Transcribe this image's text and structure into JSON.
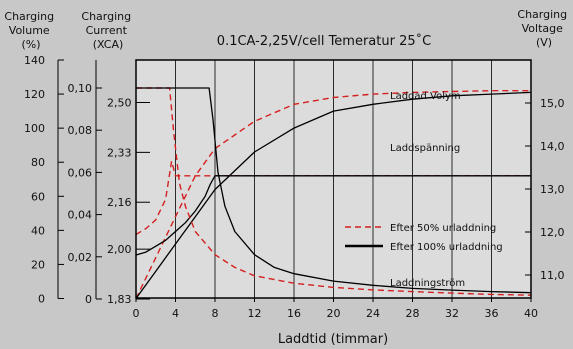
{
  "chart_data": {
    "type": "line",
    "title": "0.1CA-2,25V/cell   Temeratur 25˚C",
    "xlabel": "Laddtid (timmar)",
    "x_ticks": [
      0,
      4,
      8,
      12,
      16,
      20,
      24,
      28,
      32,
      36,
      40
    ],
    "xlim": [
      0,
      40
    ],
    "axes": {
      "volume": {
        "label_lines": [
          "Charging",
          "Volume",
          "(%)"
        ],
        "ticks": [
          "0",
          "20",
          "40",
          "60",
          "80",
          "100",
          "120",
          "140"
        ],
        "ylim": [
          0,
          140
        ]
      },
      "current": {
        "label_lines": [
          "Charging",
          "Current",
          "(XCA)"
        ],
        "ticks": [
          "0",
          "0,02",
          "0,04",
          "0,06",
          "0,08",
          "0,10"
        ],
        "ylim": [
          0,
          0.12
        ]
      },
      "cell_voltage": {
        "ticks": [
          "1,83",
          "2,00",
          "2,16",
          "2,33",
          "2,50"
        ]
      },
      "charging_voltage": {
        "label_lines": [
          "Charging",
          "Voltage",
          "(V)"
        ],
        "ticks": [
          "11,0",
          "12,0",
          "13,0",
          "14,0",
          "15,0"
        ]
      }
    },
    "annotations": [
      "Laddad Volym",
      "Laddspänning",
      "Laddningström"
    ],
    "legend": {
      "position": "right",
      "entries": [
        {
          "label": "Efter 50% urladdning",
          "style": "dashed",
          "color": "#d42020"
        },
        {
          "label": "Efter 100% urladdning",
          "style": "solid",
          "color": "#000000"
        }
      ]
    },
    "series": [
      {
        "group": "volume",
        "discharge": "50%",
        "axis": "volume",
        "x": [
          0,
          2,
          4,
          6,
          8,
          12,
          16,
          20,
          24,
          28,
          32,
          36,
          40
        ],
        "y": [
          0,
          24,
          48,
          72,
          88,
          104,
          114,
          118,
          120,
          121,
          121.5,
          122,
          122
        ]
      },
      {
        "group": "volume",
        "discharge": "100%",
        "axis": "volume",
        "x": [
          0,
          2,
          4,
          6,
          8,
          12,
          16,
          20,
          24,
          28,
          32,
          36,
          40
        ],
        "y": [
          0,
          16,
          32,
          48,
          64,
          86,
          100,
          110,
          114,
          117,
          119,
          120,
          121
        ]
      },
      {
        "group": "voltage",
        "discharge": "50%",
        "axis": "cell_voltage",
        "x": [
          0,
          1,
          2,
          3,
          3.6,
          4,
          6,
          8,
          12,
          20,
          30,
          40
        ],
        "y": [
          2.05,
          2.07,
          2.1,
          2.17,
          2.3,
          2.25,
          2.25,
          2.25,
          2.25,
          2.25,
          2.25,
          2.25
        ]
      },
      {
        "group": "voltage",
        "discharge": "100%",
        "axis": "cell_voltage",
        "x": [
          0,
          1,
          2,
          3,
          4,
          5,
          6,
          7,
          7.5,
          8,
          12,
          20,
          30,
          40
        ],
        "y": [
          1.98,
          1.99,
          2.01,
          2.03,
          2.06,
          2.09,
          2.13,
          2.18,
          2.22,
          2.25,
          2.25,
          2.25,
          2.25,
          2.25
        ]
      },
      {
        "group": "current",
        "discharge": "50%",
        "axis": "current",
        "x": [
          0,
          1,
          2,
          3,
          3.4,
          3.8,
          4.4,
          5,
          6,
          8,
          10,
          12,
          16,
          20,
          24,
          28,
          32,
          36,
          40
        ],
        "y": [
          0.1,
          0.1,
          0.1,
          0.1,
          0.1,
          0.08,
          0.055,
          0.044,
          0.032,
          0.021,
          0.015,
          0.011,
          0.0075,
          0.0055,
          0.0043,
          0.0035,
          0.0028,
          0.0022,
          0.0018
        ]
      },
      {
        "group": "current",
        "discharge": "100%",
        "axis": "current",
        "x": [
          0,
          2,
          4,
          6,
          7.4,
          7.8,
          8.3,
          9,
          10,
          12,
          14,
          16,
          20,
          24,
          28,
          32,
          36,
          40
        ],
        "y": [
          0.1,
          0.1,
          0.1,
          0.1,
          0.1,
          0.085,
          0.06,
          0.044,
          0.032,
          0.021,
          0.015,
          0.012,
          0.0085,
          0.0065,
          0.005,
          0.0042,
          0.0035,
          0.003
        ]
      }
    ]
  }
}
